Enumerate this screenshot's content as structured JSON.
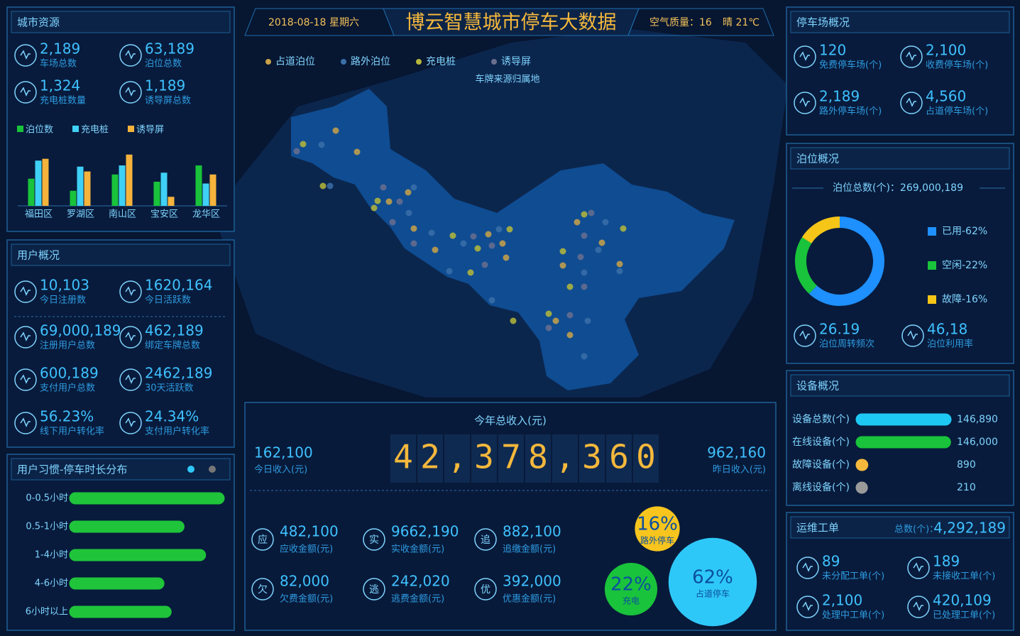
{
  "header": {
    "date": "2018-08-18",
    "weekday": "星期六",
    "title": "博云智慧城市停车大数据",
    "air_quality": "空气质量：16",
    "weather": "晴  21℃"
  },
  "city_resources": {
    "title": "城市资源",
    "stats": [
      {
        "value": "2,189",
        "label": "车场总数"
      },
      {
        "value": "63,189",
        "label": "泊位总数"
      },
      {
        "value": "1,324",
        "label": "充电桩数量"
      },
      {
        "value": "1,189",
        "label": "诱导屏总数"
      }
    ],
    "chart_data": {
      "type": "bar",
      "categories": [
        "福田区",
        "罗湖区",
        "南山区",
        "宝安区",
        "龙华区"
      ],
      "series": [
        {
          "name": "泊位数",
          "color": "#19c33b",
          "values": [
            45,
            25,
            52,
            40,
            67
          ]
        },
        {
          "name": "充电桩",
          "color": "#3fd0f5",
          "values": [
            75,
            65,
            67,
            55,
            37
          ]
        },
        {
          "name": "诱导屏",
          "color": "#f5b33c",
          "values": [
            78,
            57,
            85,
            15,
            52
          ]
        }
      ],
      "ylim": [
        0,
        100
      ]
    }
  },
  "user_overview": {
    "title": "用户概况",
    "stats": [
      {
        "value": "10,103",
        "label": "今日注册数"
      },
      {
        "value": "1620,164",
        "label": "今日活跃数"
      },
      {
        "value": "69,000,189",
        "label": "注册用户总数"
      },
      {
        "value": "462,189",
        "label": "绑定车牌总数"
      },
      {
        "value": "600,189",
        "label": "支付用户总数"
      },
      {
        "value": "2462,189",
        "label": "30天活跃数"
      },
      {
        "value": "56.23%",
        "label": "线下用户转化率"
      },
      {
        "value": "24.34%",
        "label": "支付用户转化率"
      }
    ]
  },
  "user_habits": {
    "title": "用户习惯-停车时长分布",
    "chart_data": {
      "type": "hbar",
      "categories": [
        "0-0.5小时",
        "0.5-1小时",
        "1-4小时",
        "4-6小时",
        "6小时以上"
      ],
      "values": [
        100,
        72,
        87,
        58,
        63
      ],
      "color": "#1fc43a",
      "xlim": [
        0,
        100
      ]
    }
  },
  "map": {
    "legend": [
      {
        "name": "占道泊位",
        "color": "#c9a248"
      },
      {
        "name": "路外泊位",
        "color": "#3a6fa8"
      },
      {
        "name": "充电桩",
        "color": "#b5b83a"
      },
      {
        "name": "诱导屏",
        "color": "#6a6f8e"
      }
    ],
    "subtitle": "车牌来源归属地"
  },
  "revenue": {
    "title": "今年总收入(元)",
    "total_digits": [
      "4",
      "2",
      ",",
      "3",
      "7",
      "8",
      ",",
      "3",
      "6",
      "0"
    ],
    "today": {
      "value": "162,100",
      "label": "今日收入(元)"
    },
    "yesterday": {
      "value": "962,160",
      "label": "昨日收入(元)"
    },
    "items": [
      {
        "icon": "应",
        "value": "482,100",
        "label": "应收金额(元)"
      },
      {
        "icon": "实",
        "value": "9662,190",
        "label": "实收金额(元)"
      },
      {
        "icon": "追",
        "value": "882,100",
        "label": "追缴金额(元)"
      },
      {
        "icon": "欠",
        "value": "82,000",
        "label": "欠费金额(元)"
      },
      {
        "icon": "逃",
        "value": "242,020",
        "label": "逃费金额(元)"
      },
      {
        "icon": "优",
        "value": "392,000",
        "label": "优惠金额(元)"
      }
    ],
    "chart_data": {
      "type": "bubble",
      "categories": [
        "路外停车",
        "充电",
        "占道停车"
      ],
      "values": [
        16,
        22,
        62
      ],
      "value_labels": [
        "16%",
        "22%",
        "62%"
      ],
      "colors": [
        "#f7c51e",
        "#19c33b",
        "#2ec8f8"
      ]
    }
  },
  "parking_overview": {
    "title": "停车场概况",
    "stats": [
      {
        "value": "120",
        "label": "免费停车场(个)"
      },
      {
        "value": "2,100",
        "label": "收费停车场(个)"
      },
      {
        "value": "2,189",
        "label": "路外停车场(个)"
      },
      {
        "value": "4,560",
        "label": "占道停车场(个)"
      }
    ]
  },
  "berth": {
    "title": "泊位概况",
    "total": "泊位总数(个)：269,000,189",
    "chart_data": {
      "type": "donut",
      "categories": [
        "已用-62%",
        "空闲-22%",
        "故障-16%"
      ],
      "values": [
        62,
        22,
        16
      ],
      "colors": [
        "#1e90ff",
        "#19c33b",
        "#f5c518"
      ]
    },
    "stats": [
      {
        "value": "26.19",
        "label": "泊位周转频次"
      },
      {
        "value": "46,18",
        "label": "泊位利用率"
      }
    ]
  },
  "devices": {
    "title": "设备概况",
    "chart_data": {
      "type": "hbar",
      "categories": [
        "设备总数(个)",
        "在线设备(个)",
        "故障设备(个)",
        "离线设备(个)"
      ],
      "values": [
        146890,
        146000,
        890,
        210
      ],
      "value_labels": [
        "146,890",
        "146,000",
        "890",
        "210"
      ],
      "colors": [
        "#1ec8f5",
        "#19c33b",
        "#f5b83c",
        "#9a9a9a"
      ],
      "xlim": [
        0,
        146890
      ]
    }
  },
  "work_orders": {
    "title": "运维工单",
    "total_label": "总数(个)：",
    "total": "4,292,189",
    "stats": [
      {
        "value": "89",
        "label": "未分配工单(个)"
      },
      {
        "value": "189",
        "label": "未接收工单(个)"
      },
      {
        "value": "2,100",
        "label": "处理中工单(个)"
      },
      {
        "value": "420,109",
        "label": "已处理工单(个)"
      }
    ]
  }
}
